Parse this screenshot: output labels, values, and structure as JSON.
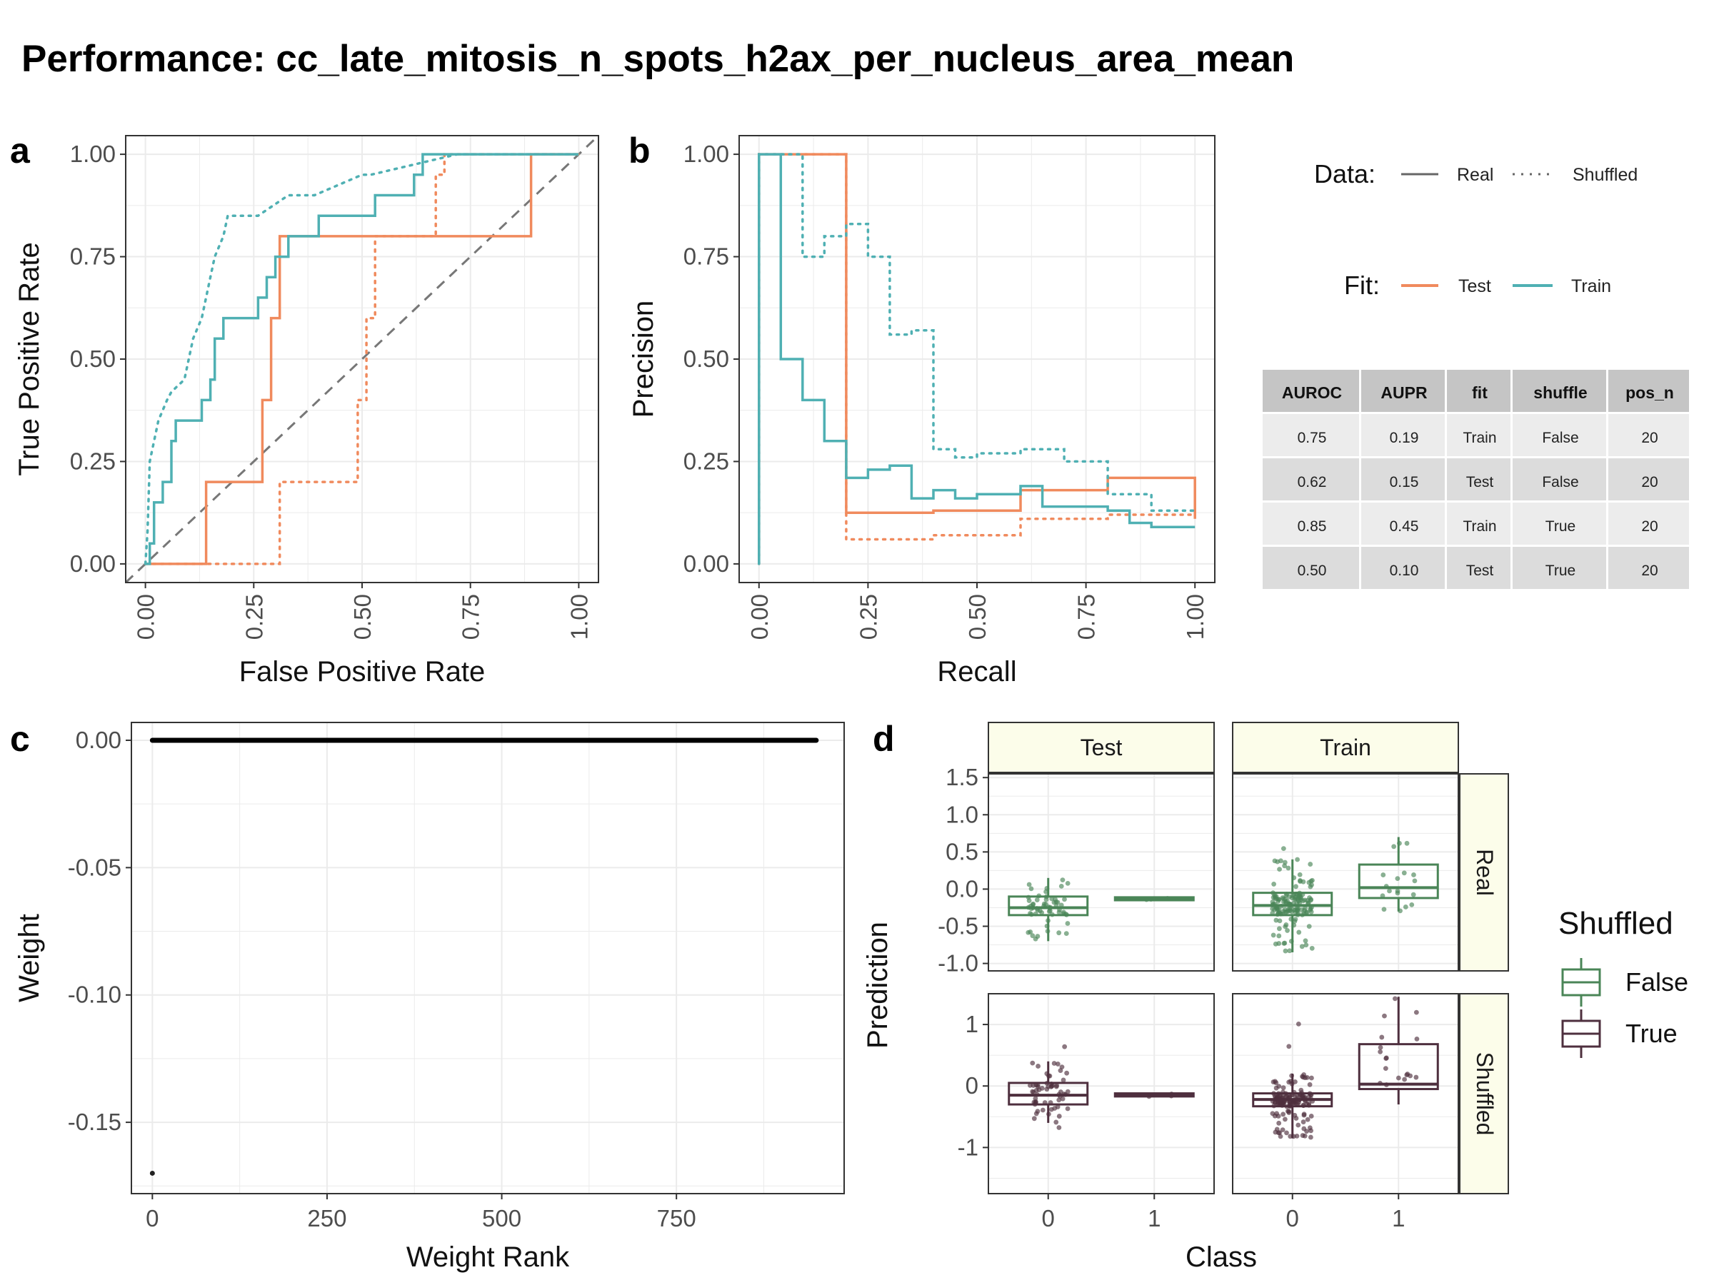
{
  "title": "Performance: cc_late_mitosis_n_spots_h2ax_per_nucleus_area_mean",
  "colors": {
    "test": "#F08A5D",
    "train": "#4FB0B3",
    "false_box": "#4A8557",
    "true_box": "#4E2F3E"
  },
  "chart_data": [
    {
      "panel": "a",
      "type": "line",
      "xlabel": "False Positive Rate",
      "ylabel": "True Positive Rate",
      "xlim": [
        0,
        1
      ],
      "ylim": [
        0,
        1
      ],
      "ticks": [
        "0.00",
        "0.25",
        "0.50",
        "0.75",
        "1.00"
      ],
      "series": [
        {
          "name": "Test Real",
          "fit": "Test",
          "data": "Real",
          "x": [
            0,
            0.14,
            0.14,
            0.27,
            0.27,
            0.29,
            0.29,
            0.31,
            0.31,
            0.89,
            0.89,
            1
          ],
          "y": [
            0,
            0,
            0.2,
            0.2,
            0.4,
            0.4,
            0.6,
            0.6,
            0.8,
            0.8,
            1,
            1
          ]
        },
        {
          "name": "Test Shuffled",
          "fit": "Test",
          "data": "Shuffled",
          "x": [
            0,
            0.31,
            0.31,
            0.49,
            0.49,
            0.51,
            0.51,
            0.53,
            0.53,
            0.67,
            0.67,
            0.69,
            0.69,
            1
          ],
          "y": [
            0,
            0,
            0.2,
            0.2,
            0.4,
            0.4,
            0.6,
            0.6,
            0.8,
            0.8,
            0.95,
            0.95,
            1,
            1
          ]
        },
        {
          "name": "Train Real",
          "fit": "Train",
          "data": "Real",
          "x": [
            0,
            0.01,
            0.01,
            0.02,
            0.02,
            0.04,
            0.04,
            0.06,
            0.06,
            0.07,
            0.07,
            0.13,
            0.13,
            0.15,
            0.15,
            0.16,
            0.16,
            0.18,
            0.18,
            0.26,
            0.26,
            0.28,
            0.28,
            0.3,
            0.3,
            0.33,
            0.33,
            0.4,
            0.4,
            0.53,
            0.53,
            0.62,
            0.62,
            0.64,
            0.64,
            0.66,
            0.66,
            0.72,
            0.72,
            1
          ],
          "y": [
            0,
            0,
            0.05,
            0.05,
            0.15,
            0.15,
            0.2,
            0.2,
            0.3,
            0.3,
            0.35,
            0.35,
            0.4,
            0.4,
            0.45,
            0.45,
            0.55,
            0.55,
            0.6,
            0.6,
            0.65,
            0.65,
            0.7,
            0.7,
            0.75,
            0.75,
            0.8,
            0.8,
            0.85,
            0.85,
            0.9,
            0.9,
            0.95,
            0.95,
            1,
            1,
            1,
            1,
            1,
            1
          ]
        },
        {
          "name": "Train Shuffled",
          "fit": "Train",
          "data": "Shuffled",
          "x": [
            0,
            0.005,
            0.005,
            0.01,
            0.01,
            0.03,
            0.03,
            0.05,
            0.05,
            0.06,
            0.06,
            0.09,
            0.09,
            0.11,
            0.11,
            0.13,
            0.13,
            0.15,
            0.15,
            0.16,
            0.16,
            0.18,
            0.18,
            0.19,
            0.19,
            0.22,
            0.22,
            0.26,
            0.26,
            0.33,
            0.33,
            0.39,
            0.39,
            0.5,
            0.5,
            0.52,
            0.52,
            0.72,
            0.72,
            1
          ],
          "y": [
            0,
            0.08,
            0.08,
            0.25,
            0.25,
            0.35,
            0.35,
            0.4,
            0.4,
            0.42,
            0.42,
            0.45,
            0.45,
            0.55,
            0.55,
            0.6,
            0.6,
            0.7,
            0.7,
            0.75,
            0.75,
            0.8,
            0.8,
            0.85,
            0.85,
            0.85,
            0.85,
            0.85,
            0.85,
            0.9,
            0.9,
            0.9,
            0.9,
            0.95,
            0.95,
            0.95,
            0.95,
            1,
            1,
            1
          ]
        }
      ]
    },
    {
      "panel": "b",
      "type": "line",
      "xlabel": "Recall",
      "ylabel": "Precision",
      "xlim": [
        0,
        1
      ],
      "ylim": [
        0,
        1
      ],
      "ticks": [
        "0.00",
        "0.25",
        "0.50",
        "0.75",
        "1.00"
      ],
      "series": [
        {
          "name": "Test Real",
          "fit": "Test",
          "data": "Real",
          "x": [
            0,
            0,
            0.2,
            0.2,
            0.4,
            0.4,
            0.6,
            0.6,
            0.8,
            0.8,
            1,
            1
          ],
          "y": [
            0,
            1,
            1,
            0.125,
            0.125,
            0.13,
            0.13,
            0.18,
            0.18,
            0.21,
            0.21,
            0.11
          ]
        },
        {
          "name": "Test Shuffled",
          "fit": "Test",
          "data": "Shuffled",
          "x": [
            0,
            0,
            0.2,
            0.2,
            0.4,
            0.4,
            0.6,
            0.6,
            0.8,
            0.8,
            1
          ],
          "y": [
            0,
            1,
            1,
            0.06,
            0.06,
            0.07,
            0.07,
            0.11,
            0.11,
            0.12,
            0.12
          ]
        },
        {
          "name": "Train Real",
          "fit": "Train",
          "data": "Real",
          "x": [
            0,
            0,
            0.05,
            0.05,
            0.1,
            0.1,
            0.15,
            0.15,
            0.2,
            0.2,
            0.25,
            0.25,
            0.3,
            0.3,
            0.35,
            0.35,
            0.4,
            0.4,
            0.45,
            0.45,
            0.5,
            0.5,
            0.6,
            0.6,
            0.65,
            0.65,
            0.8,
            0.8,
            0.85,
            0.85,
            0.9,
            0.9,
            1
          ],
          "y": [
            0,
            1,
            1,
            0.5,
            0.5,
            0.4,
            0.4,
            0.3,
            0.3,
            0.21,
            0.21,
            0.23,
            0.23,
            0.24,
            0.24,
            0.16,
            0.16,
            0.18,
            0.18,
            0.16,
            0.16,
            0.17,
            0.17,
            0.19,
            0.19,
            0.14,
            0.14,
            0.13,
            0.13,
            0.1,
            0.1,
            0.09,
            0.09
          ]
        },
        {
          "name": "Train Shuffled",
          "fit": "Train",
          "data": "Shuffled",
          "x": [
            0,
            0,
            0.1,
            0.1,
            0.15,
            0.15,
            0.2,
            0.2,
            0.25,
            0.25,
            0.3,
            0.3,
            0.35,
            0.35,
            0.4,
            0.4,
            0.45,
            0.45,
            0.5,
            0.5,
            0.6,
            0.6,
            0.7,
            0.7,
            0.8,
            0.8,
            0.9,
            0.9,
            1
          ],
          "y": [
            0,
            1,
            1,
            0.75,
            0.75,
            0.8,
            0.8,
            0.83,
            0.83,
            0.75,
            0.75,
            0.56,
            0.56,
            0.57,
            0.57,
            0.28,
            0.28,
            0.26,
            0.26,
            0.27,
            0.27,
            0.28,
            0.28,
            0.25,
            0.25,
            0.17,
            0.17,
            0.13,
            0.13
          ]
        }
      ]
    },
    {
      "panel": "c",
      "type": "scatter",
      "xlabel": "Weight Rank",
      "ylabel": "Weight",
      "xlim": [
        -30,
        990
      ],
      "ylim": [
        -0.178,
        0.007
      ],
      "xticks": [
        0,
        250,
        500,
        750
      ],
      "yticks": [
        "0.00",
        "-0.05",
        "-0.10",
        "-0.15"
      ],
      "zero_line_rank": [
        0,
        950
      ],
      "outlier": {
        "rank": 0,
        "weight": -0.17
      }
    },
    {
      "panel": "d",
      "type": "boxplot",
      "xlabel": "Class",
      "ylabel": "Prediction",
      "cols": [
        "Test",
        "Train"
      ],
      "rows": [
        "Real",
        "Shuffled"
      ],
      "classes": [
        "0",
        "1"
      ],
      "real_yticks": [
        "1.5",
        "1.0",
        "0.5",
        "0.0",
        "-0.5",
        "-1.0"
      ],
      "shuffled_yticks": [
        "1",
        "0",
        "-1"
      ],
      "boxes": [
        {
          "col": "Test",
          "row": "Real",
          "class": "0",
          "q1": -0.35,
          "median": -0.25,
          "q3": -0.1,
          "lo": -0.7,
          "hi": 0.15
        },
        {
          "col": "Test",
          "row": "Real",
          "class": "1",
          "q1": -0.15,
          "median": -0.13,
          "q3": -0.11,
          "lo": -0.15,
          "hi": -0.11
        },
        {
          "col": "Train",
          "row": "Real",
          "class": "0",
          "q1": -0.35,
          "median": -0.22,
          "q3": -0.05,
          "lo": -0.85,
          "hi": 0.4
        },
        {
          "col": "Train",
          "row": "Real",
          "class": "1",
          "q1": -0.12,
          "median": 0.02,
          "q3": 0.33,
          "lo": -0.3,
          "hi": 0.7
        },
        {
          "col": "Test",
          "row": "Shuffled",
          "class": "0",
          "q1": -0.3,
          "median": -0.15,
          "q3": 0.05,
          "lo": -0.6,
          "hi": 0.4
        },
        {
          "col": "Test",
          "row": "Shuffled",
          "class": "1",
          "q1": -0.17,
          "median": -0.15,
          "q3": -0.12,
          "lo": -0.17,
          "hi": -0.12
        },
        {
          "col": "Train",
          "row": "Shuffled",
          "class": "0",
          "q1": -0.33,
          "median": -0.22,
          "q3": -0.12,
          "lo": -0.85,
          "hi": 0.2
        },
        {
          "col": "Train",
          "row": "Shuffled",
          "class": "1",
          "q1": -0.05,
          "median": 0.03,
          "q3": 0.68,
          "lo": -0.3,
          "hi": 1.45
        }
      ]
    }
  ],
  "panel_labels": [
    "a",
    "b",
    "c",
    "d"
  ],
  "legend": {
    "data_title": "Data:",
    "data_real": "Real",
    "data_shuffled": "Shuffled",
    "fit_title": "Fit:",
    "fit_test": "Test",
    "fit_train": "Train",
    "shuffled_title": "Shuffled",
    "shuffled_false": "False",
    "shuffled_true": "True"
  },
  "table": {
    "headers": [
      "AUROC",
      "AUPR",
      "fit",
      "shuffle",
      "pos_n"
    ],
    "rows": [
      [
        "0.75",
        "0.19",
        "Train",
        "False",
        "20"
      ],
      [
        "0.62",
        "0.15",
        "Test",
        "False",
        "20"
      ],
      [
        "0.85",
        "0.45",
        "Train",
        "True",
        "20"
      ],
      [
        "0.50",
        "0.10",
        "Test",
        "True",
        "20"
      ]
    ]
  }
}
